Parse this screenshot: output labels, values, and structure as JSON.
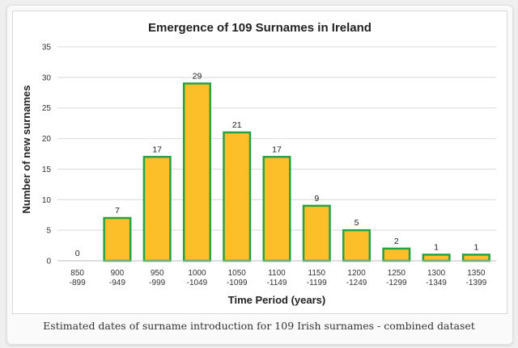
{
  "chart_data": {
    "type": "bar",
    "title": "Emergence of 109 Surnames in Ireland",
    "xlabel": "Time Period (years)",
    "ylabel": "Number of new surnames",
    "ylim": [
      0,
      35
    ],
    "yticks": [
      0,
      5,
      10,
      15,
      20,
      25,
      30,
      35
    ],
    "categories": [
      [
        "850",
        "-899"
      ],
      [
        "900",
        "-949"
      ],
      [
        "950",
        "-999"
      ],
      [
        "1000",
        "-1049"
      ],
      [
        "1050",
        "-1099"
      ],
      [
        "1100",
        "-1149"
      ],
      [
        "1150",
        "-1199"
      ],
      [
        "1200",
        "-1249"
      ],
      [
        "1250",
        "-1299"
      ],
      [
        "1300",
        "-1349"
      ],
      [
        "1350",
        "-1399"
      ]
    ],
    "values": [
      0,
      7,
      17,
      29,
      21,
      17,
      9,
      5,
      2,
      1,
      1
    ],
    "data_labels": true,
    "grid": true,
    "colors": {
      "bar_fill": "#fcbf2a",
      "bar_edge": "#27a243",
      "grid": "#d9d9d9"
    }
  },
  "caption": "Estimated dates of surname introduction for 109 Irish surnames - combined dataset"
}
